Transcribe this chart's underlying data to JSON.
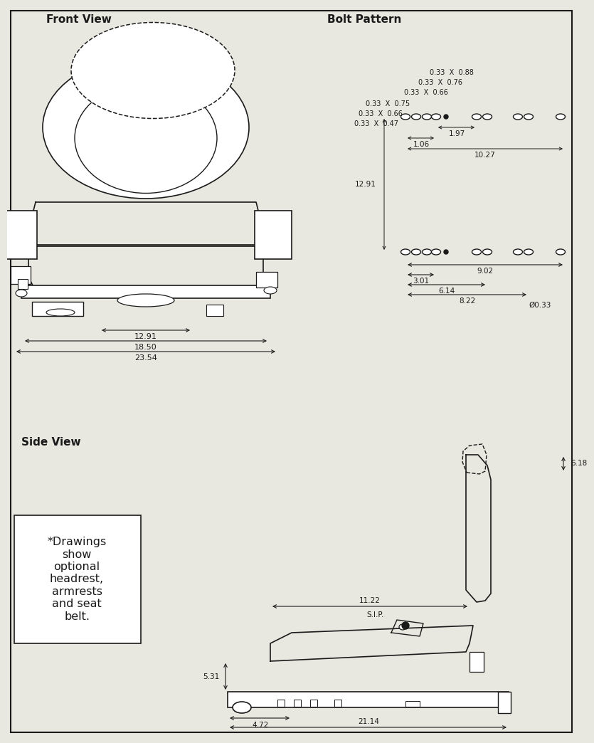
{
  "bg": "#e8e8e0",
  "lc": "#1a1a1a",
  "front_label": "Front View",
  "bolt_label": "Bolt Pattern",
  "side_label": "Side View",
  "note": "*Drawings\nshow\noptional\nheadrest,\narmrests\nand seat\nbelt.",
  "fd": [
    "12.91",
    "18.50",
    "23.54"
  ],
  "bt_labels": [
    "0.33  X  0.47",
    "0.33  X  0.66",
    "0.33  X  0.75",
    "0.33  X  0.66",
    "0.33  X  0.76",
    "0.33  X  0.88"
  ],
  "bt_dims": [
    "1.97",
    "1.06",
    "10.27"
  ],
  "bb_dims": [
    "9.02",
    "3.01",
    "6.14",
    "8.22",
    "12.91",
    "Ø0.33"
  ],
  "sd": [
    "6.18",
    "11.22",
    "5.31",
    "4.72",
    "21.14"
  ],
  "sip": "S.I.P."
}
